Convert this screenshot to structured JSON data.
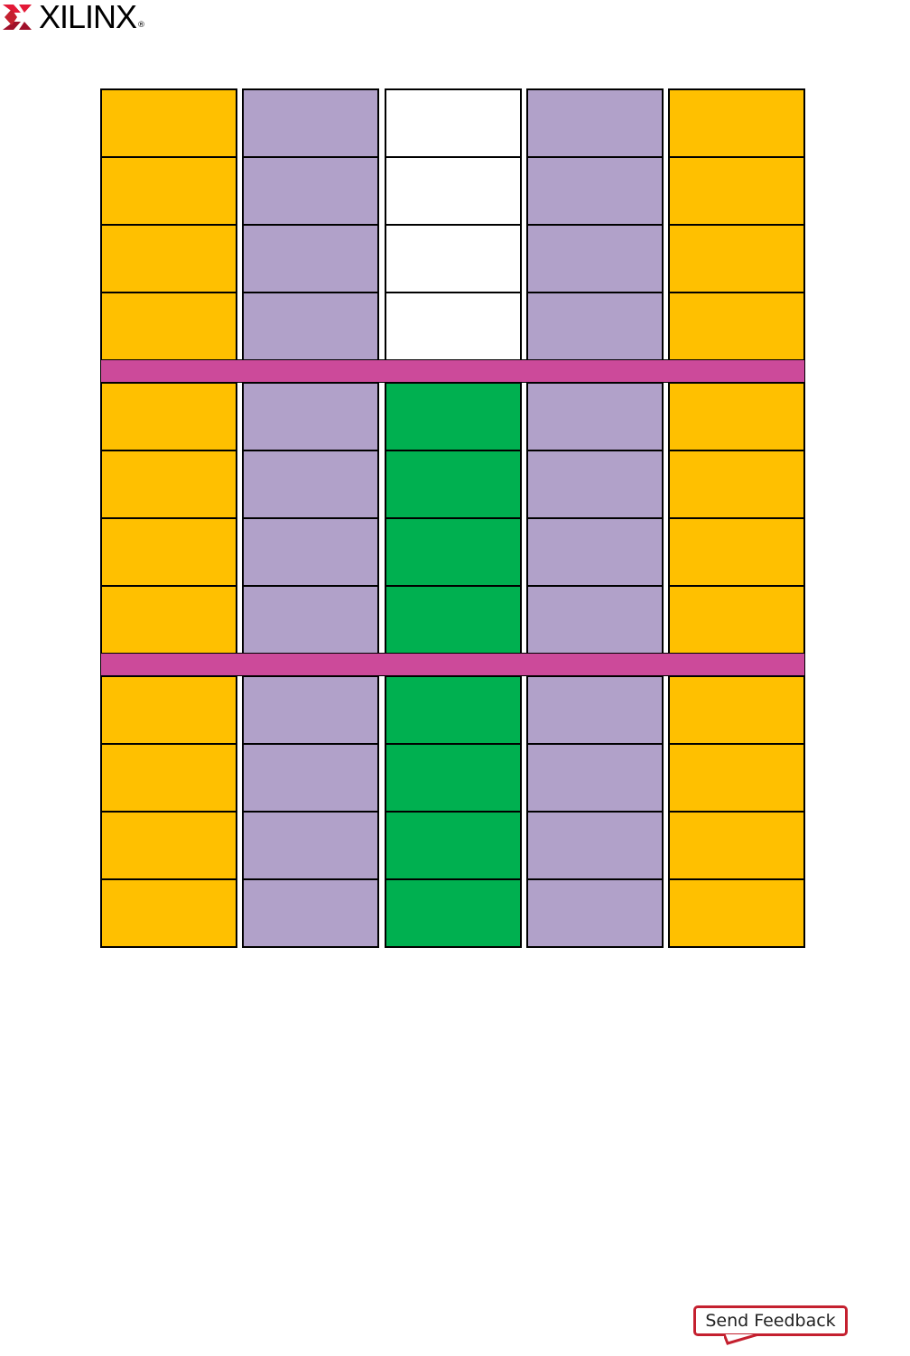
{
  "logo": {
    "text": "XILINX",
    "mark": "®",
    "color": "#c4202f"
  },
  "diagram": {
    "columns": [
      {
        "top_color": "#ffc000",
        "bottom_color": "#ffc000"
      },
      {
        "top_color": "#b1a1c9",
        "bottom_color": "#b1a1c9"
      },
      {
        "top_color": "#ffffff",
        "bottom_color": "#00b050"
      },
      {
        "top_color": "#b1a1c9",
        "bottom_color": "#b1a1c9"
      },
      {
        "top_color": "#ffc000",
        "bottom_color": "#ffc000"
      }
    ],
    "blocks": [
      {
        "rows": 4,
        "use": "top_color"
      },
      {
        "rows": 4,
        "use": "bottom_color"
      },
      {
        "rows": 4,
        "use": "bottom_color"
      }
    ],
    "separator_color": "#cc4a9a"
  },
  "feedback": {
    "label": "Send Feedback"
  }
}
